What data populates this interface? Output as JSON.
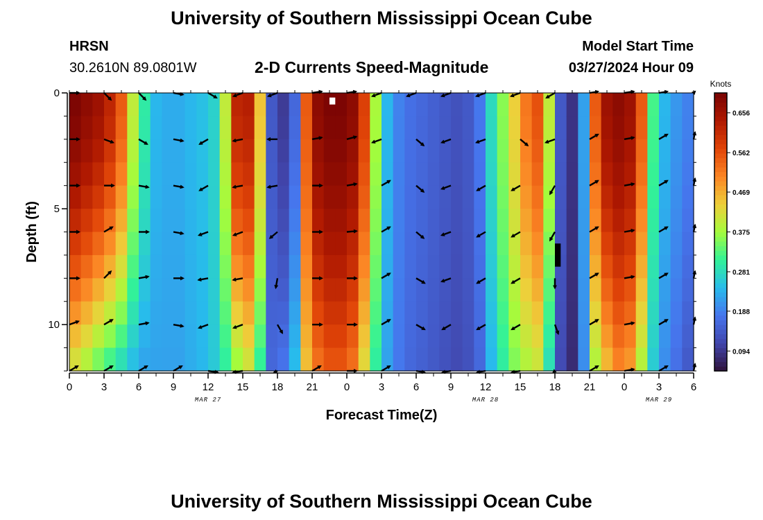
{
  "page": {
    "title": "University of Southern Mississippi Ocean Cube",
    "footer_title": "University of Southern Mississippi Ocean Cube",
    "station_id": "HRSN",
    "station_coords": "30.2610N  89.0801W",
    "subtitle": "2-D Currents Speed-Magnitude",
    "start_label": "Model Start Time",
    "start_time": "03/27/2024 Hour 09"
  },
  "chart_data": {
    "type": "heatmap",
    "title": "2-D Currents Speed-Magnitude",
    "xlabel": "Forecast Time(Z)",
    "ylabel": "Depth (ft)",
    "xlim": [
      0,
      54
    ],
    "ylim": [
      0,
      12
    ],
    "x_tick_values": [
      0,
      3,
      6,
      9,
      12,
      15,
      18,
      21,
      24,
      27,
      30,
      33,
      36,
      39,
      42,
      45,
      48,
      51,
      54
    ],
    "x_tick_labels": [
      "0",
      "3",
      "6",
      "9",
      "12",
      "15",
      "18",
      "21",
      "0",
      "3",
      "6",
      "9",
      "12",
      "15",
      "18",
      "21",
      "0",
      "3",
      "6"
    ],
    "y_tick_values": [
      0,
      5,
      10
    ],
    "y_tick_labels": [
      "0",
      "5",
      "10"
    ],
    "date_labels": [
      {
        "text": "MAR 27",
        "at": 12
      },
      {
        "text": "MAR 28",
        "at": 36
      },
      {
        "text": "MAR 29",
        "at": 51
      }
    ],
    "colorbar": {
      "label": "Knots",
      "min": 0.047,
      "max": 0.703,
      "ticks": [
        0.094,
        0.188,
        0.281,
        0.375,
        0.469,
        0.562,
        0.656
      ]
    },
    "time_columns": [
      {
        "t": 0,
        "surface": 0.7,
        "bottom": 0.4
      },
      {
        "t": 1,
        "surface": 0.68,
        "bottom": 0.37
      },
      {
        "t": 2,
        "surface": 0.66,
        "bottom": 0.33
      },
      {
        "t": 3,
        "surface": 0.62,
        "bottom": 0.3
      },
      {
        "t": 4,
        "surface": 0.55,
        "bottom": 0.27
      },
      {
        "t": 5,
        "surface": 0.4,
        "bottom": 0.24
      },
      {
        "t": 6,
        "surface": 0.3,
        "bottom": 0.22
      },
      {
        "t": 7,
        "surface": 0.24,
        "bottom": 0.22
      },
      {
        "t": 8,
        "surface": 0.23,
        "bottom": 0.22
      },
      {
        "t": 9,
        "surface": 0.23,
        "bottom": 0.22
      },
      {
        "t": 10,
        "surface": 0.24,
        "bottom": 0.23
      },
      {
        "t": 11,
        "surface": 0.25,
        "bottom": 0.24
      },
      {
        "t": 12,
        "surface": 0.27,
        "bottom": 0.26
      },
      {
        "t": 13,
        "surface": 0.4,
        "bottom": 0.3
      },
      {
        "t": 14,
        "surface": 0.62,
        "bottom": 0.36
      },
      {
        "t": 15,
        "surface": 0.63,
        "bottom": 0.4
      },
      {
        "t": 16,
        "surface": 0.45,
        "bottom": 0.3
      },
      {
        "t": 17,
        "surface": 0.14,
        "bottom": 0.16
      },
      {
        "t": 18,
        "surface": 0.1,
        "bottom": 0.18
      },
      {
        "t": 19,
        "surface": 0.16,
        "bottom": 0.25
      },
      {
        "t": 20,
        "surface": 0.55,
        "bottom": 0.45
      },
      {
        "t": 21,
        "surface": 0.68,
        "bottom": 0.52
      },
      {
        "t": 22,
        "surface": 0.7,
        "bottom": 0.55
      },
      {
        "t": 23,
        "surface": 0.7,
        "bottom": 0.55
      },
      {
        "t": 24,
        "surface": 0.68,
        "bottom": 0.52
      },
      {
        "t": 25,
        "surface": 0.58,
        "bottom": 0.42
      },
      {
        "t": 26,
        "surface": 0.38,
        "bottom": 0.3
      },
      {
        "t": 27,
        "surface": 0.24,
        "bottom": 0.22
      },
      {
        "t": 28,
        "surface": 0.19,
        "bottom": 0.18
      },
      {
        "t": 29,
        "surface": 0.17,
        "bottom": 0.16
      },
      {
        "t": 30,
        "surface": 0.16,
        "bottom": 0.15
      },
      {
        "t": 31,
        "surface": 0.15,
        "bottom": 0.14
      },
      {
        "t": 32,
        "surface": 0.14,
        "bottom": 0.13
      },
      {
        "t": 33,
        "surface": 0.13,
        "bottom": 0.12
      },
      {
        "t": 34,
        "surface": 0.14,
        "bottom": 0.13
      },
      {
        "t": 35,
        "surface": 0.18,
        "bottom": 0.16
      },
      {
        "t": 36,
        "surface": 0.28,
        "bottom": 0.24
      },
      {
        "t": 37,
        "surface": 0.36,
        "bottom": 0.3
      },
      {
        "t": 38,
        "surface": 0.44,
        "bottom": 0.35
      },
      {
        "t": 39,
        "surface": 0.52,
        "bottom": 0.38
      },
      {
        "t": 40,
        "surface": 0.56,
        "bottom": 0.4
      },
      {
        "t": 41,
        "surface": 0.4,
        "bottom": 0.28
      },
      {
        "t": 42,
        "surface": 0.14,
        "bottom": 0.12
      },
      {
        "t": 43,
        "surface": 0.09,
        "bottom": 0.08
      },
      {
        "t": 44,
        "surface": 0.22,
        "bottom": 0.2
      },
      {
        "t": 45,
        "surface": 0.55,
        "bottom": 0.38
      },
      {
        "t": 46,
        "surface": 0.66,
        "bottom": 0.45
      },
      {
        "t": 47,
        "surface": 0.68,
        "bottom": 0.5
      },
      {
        "t": 48,
        "surface": 0.66,
        "bottom": 0.48
      },
      {
        "t": 49,
        "surface": 0.55,
        "bottom": 0.38
      },
      {
        "t": 50,
        "surface": 0.32,
        "bottom": 0.26
      },
      {
        "t": 51,
        "surface": 0.24,
        "bottom": 0.2
      },
      {
        "t": 52,
        "surface": 0.21,
        "bottom": 0.17
      },
      {
        "t": 53,
        "surface": 0.19,
        "bottom": 0.14
      }
    ],
    "vector_depths": [
      0,
      2,
      4,
      6,
      8,
      10,
      12
    ],
    "vector_columns": [
      {
        "t": 0,
        "dir": [
          90,
          90,
          90,
          90,
          90,
          70,
          60
        ]
      },
      {
        "t": 3,
        "dir": [
          135,
          110,
          90,
          60,
          45,
          60,
          60
        ]
      },
      {
        "t": 6,
        "dir": [
          135,
          120,
          100,
          90,
          80,
          80,
          60
        ]
      },
      {
        "t": 9,
        "dir": [
          100,
          100,
          100,
          100,
          90,
          100,
          60
        ]
      },
      {
        "t": 12,
        "dir": [
          120,
          240,
          240,
          250,
          260,
          250,
          100
        ]
      },
      {
        "t": 15,
        "dir": [
          250,
          260,
          260,
          250,
          260,
          250,
          260
        ]
      },
      {
        "t": 18,
        "dir": [
          250,
          270,
          260,
          230,
          190,
          150,
          200
        ]
      },
      {
        "t": 21,
        "dir": [
          80,
          80,
          90,
          90,
          90,
          90,
          60
        ]
      },
      {
        "t": 24,
        "dir": [
          70,
          75,
          80,
          85,
          90,
          90,
          90
        ]
      },
      {
        "t": 27,
        "dir": [
          250,
          250,
          60,
          60,
          60,
          60,
          60
        ]
      },
      {
        "t": 30,
        "dir": [
          250,
          130,
          130,
          130,
          120,
          120,
          120
        ]
      },
      {
        "t": 33,
        "dir": [
          250,
          250,
          250,
          250,
          250,
          240,
          240
        ]
      },
      {
        "t": 36,
        "dir": [
          250,
          250,
          240,
          240,
          240,
          240,
          240
        ]
      },
      {
        "t": 39,
        "dir": [
          250,
          130,
          240,
          240,
          240,
          240,
          240
        ]
      },
      {
        "t": 42,
        "dir": [
          240,
          250,
          210,
          210,
          180,
          160,
          190
        ]
      },
      {
        "t": 45,
        "dir": [
          60,
          60,
          60,
          60,
          60,
          60,
          60
        ]
      },
      {
        "t": 48,
        "dir": [
          80,
          80,
          80,
          80,
          80,
          80,
          80
        ]
      },
      {
        "t": 51,
        "dir": [
          60,
          60,
          60,
          60,
          60,
          60,
          60
        ]
      },
      {
        "t": 54,
        "dir": [
          45,
          45,
          45,
          45,
          45,
          45,
          45
        ]
      }
    ],
    "missing_cells": [
      {
        "t0": 22.5,
        "t1": 23.0,
        "d0": 0.2,
        "d1": 0.5,
        "color": "#ffffff"
      },
      {
        "t0": 42.0,
        "t1": 42.5,
        "d0": 6.5,
        "d1": 7.5,
        "color": "#000000"
      }
    ]
  }
}
